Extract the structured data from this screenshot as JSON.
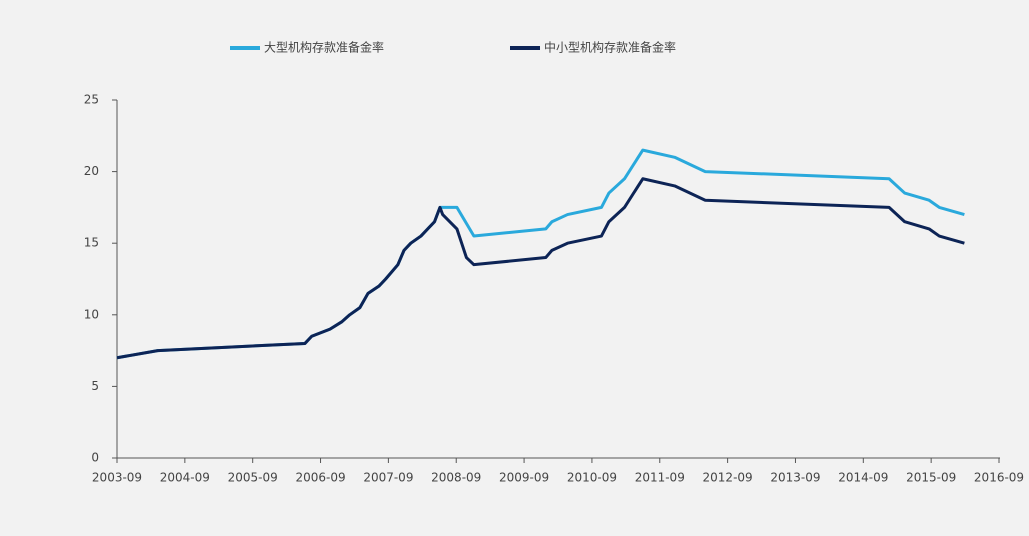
{
  "chart_data": {
    "type": "line",
    "xlim": [
      2003.67,
      2016.67
    ],
    "xticks": [
      {
        "value": 2003.67,
        "label": "2003-09"
      },
      {
        "value": 2004.67,
        "label": "2004-09"
      },
      {
        "value": 2005.67,
        "label": "2005-09"
      },
      {
        "value": 2006.67,
        "label": "2006-09"
      },
      {
        "value": 2007.67,
        "label": "2007-09"
      },
      {
        "value": 2008.67,
        "label": "2008-09"
      },
      {
        "value": 2009.67,
        "label": "2009-09"
      },
      {
        "value": 2010.67,
        "label": "2010-09"
      },
      {
        "value": 2011.67,
        "label": "2011-09"
      },
      {
        "value": 2012.67,
        "label": "2012-09"
      },
      {
        "value": 2013.67,
        "label": "2013-09"
      },
      {
        "value": 2014.67,
        "label": "2014-09"
      },
      {
        "value": 2015.67,
        "label": "2015-09"
      },
      {
        "value": 2016.67,
        "label": "2016-09"
      }
    ],
    "ylim": [
      0,
      25
    ],
    "yticks": [
      0,
      5,
      10,
      15,
      20,
      25
    ],
    "series": [
      {
        "name": "大型机构存款准备金率",
        "color": "#2aa9dc",
        "x": [
          2003.67,
          2004.27,
          2006.44,
          2006.54,
          2006.81,
          2006.98,
          2007.1,
          2007.25,
          2007.37,
          2007.53,
          2007.63,
          2007.81,
          2007.9,
          2008.0,
          2008.15,
          2008.25,
          2008.35,
          2008.43,
          2008.53,
          2008.68,
          2008.93,
          2009.99,
          2010.08,
          2010.31,
          2010.81,
          2010.92,
          2011.15,
          2011.42,
          2011.89,
          2012.34,
          2015.05,
          2015.28,
          2015.64,
          2015.79,
          2016.16
        ],
        "values": [
          7,
          7.5,
          8,
          8.5,
          9,
          9.5,
          10,
          10.5,
          11.5,
          12,
          12.5,
          13.5,
          14.5,
          15,
          15.5,
          16,
          16.5,
          17.5,
          17.5,
          17.5,
          15.5,
          16,
          16.5,
          17,
          17.5,
          18.5,
          19.5,
          21.5,
          21,
          20,
          19.5,
          18.5,
          18,
          17.5,
          17
        ]
      },
      {
        "name": "中小型机构存款准备金率",
        "color": "#0d2456",
        "x": [
          2003.67,
          2004.27,
          2006.44,
          2006.54,
          2006.81,
          2006.98,
          2007.1,
          2007.25,
          2007.37,
          2007.53,
          2007.63,
          2007.81,
          2007.9,
          2008.0,
          2008.15,
          2008.25,
          2008.35,
          2008.43,
          2008.47,
          2008.68,
          2008.75,
          2008.82,
          2008.93,
          2009.99,
          2010.08,
          2010.31,
          2010.81,
          2010.92,
          2011.15,
          2011.42,
          2011.89,
          2012.34,
          2015.05,
          2015.28,
          2015.64,
          2015.79,
          2016.16
        ],
        "values": [
          7,
          7.5,
          8,
          8.5,
          9,
          9.5,
          10,
          10.5,
          11.5,
          12,
          12.5,
          13.5,
          14.5,
          15,
          15.5,
          16,
          16.5,
          17.5,
          17,
          16,
          15,
          14,
          13.5,
          14,
          14.5,
          15,
          15.5,
          16.5,
          17.5,
          19.5,
          19,
          18,
          17.5,
          16.5,
          16,
          15.5,
          15
        ]
      }
    ]
  }
}
